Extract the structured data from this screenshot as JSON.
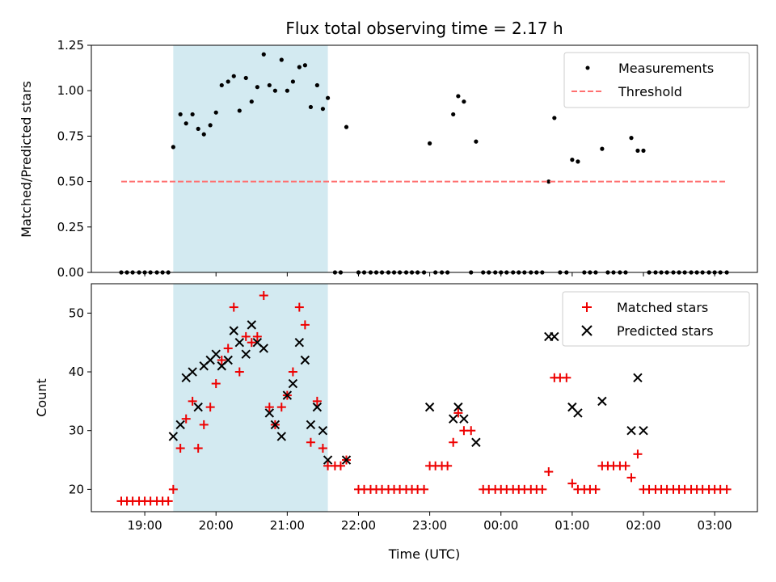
{
  "figure": {
    "title": "Flux total observing time = 2.17 h",
    "xlabel": "Time (UTC)",
    "xticks": [
      "19:00",
      "20:00",
      "21:00",
      "22:00",
      "23:00",
      "00:00",
      "01:00",
      "02:00",
      "03:00"
    ]
  },
  "chart_data": [
    {
      "type": "scatter",
      "title": "Flux total observing time = 2.17 h",
      "xlabel": "",
      "ylabel": "Matched/Predicted stars",
      "x_units": "hours since 19:00 UTC",
      "xlim": [
        -0.75,
        8.6
      ],
      "ylim": [
        0,
        1.25
      ],
      "yticks": [
        "0.00",
        "0.25",
        "0.50",
        "0.75",
        "1.00",
        "1.25"
      ],
      "shaded_region": {
        "x": [
          0.4,
          2.57
        ],
        "color": "#a8d6e3"
      },
      "legend": {
        "position": "upper right",
        "entries": [
          "Measurements",
          "Threshold"
        ]
      },
      "series": [
        {
          "name": "Measurements",
          "marker": "dot",
          "color": "#000000",
          "points": [
            [
              -0.33,
              0
            ],
            [
              -0.25,
              0
            ],
            [
              -0.17,
              0
            ],
            [
              -0.08,
              0
            ],
            [
              0,
              0
            ],
            [
              0.08,
              0
            ],
            [
              0.17,
              0
            ],
            [
              0.25,
              0
            ],
            [
              0.33,
              0
            ],
            [
              0.4,
              0.69
            ],
            [
              0.5,
              0.87
            ],
            [
              0.58,
              0.82
            ],
            [
              0.67,
              0.87
            ],
            [
              0.75,
              0.79
            ],
            [
              0.83,
              0.76
            ],
            [
              0.92,
              0.81
            ],
            [
              1.0,
              0.88
            ],
            [
              1.08,
              1.03
            ],
            [
              1.17,
              1.05
            ],
            [
              1.25,
              1.08
            ],
            [
              1.33,
              0.89
            ],
            [
              1.42,
              1.07
            ],
            [
              1.5,
              0.94
            ],
            [
              1.58,
              1.02
            ],
            [
              1.67,
              1.2
            ],
            [
              1.75,
              1.03
            ],
            [
              1.83,
              1.0
            ],
            [
              1.92,
              1.17
            ],
            [
              2.0,
              1.0
            ],
            [
              2.08,
              1.05
            ],
            [
              2.17,
              1.13
            ],
            [
              2.25,
              1.14
            ],
            [
              2.33,
              0.91
            ],
            [
              2.42,
              1.03
            ],
            [
              2.5,
              0.9
            ],
            [
              2.57,
              0.96
            ],
            [
              2.67,
              0
            ],
            [
              2.75,
              0
            ],
            [
              2.83,
              0.8
            ],
            [
              3.0,
              0
            ],
            [
              3.08,
              0
            ],
            [
              3.17,
              0
            ],
            [
              3.25,
              0
            ],
            [
              3.33,
              0
            ],
            [
              3.42,
              0
            ],
            [
              3.5,
              0
            ],
            [
              3.58,
              0
            ],
            [
              3.67,
              0
            ],
            [
              3.75,
              0
            ],
            [
              3.83,
              0
            ],
            [
              3.92,
              0
            ],
            [
              4.0,
              0.71
            ],
            [
              4.08,
              0
            ],
            [
              4.17,
              0
            ],
            [
              4.25,
              0
            ],
            [
              4.33,
              0.87
            ],
            [
              4.4,
              0.97
            ],
            [
              4.48,
              0.94
            ],
            [
              4.58,
              0
            ],
            [
              4.65,
              0.72
            ],
            [
              4.75,
              0
            ],
            [
              4.83,
              0
            ],
            [
              4.92,
              0
            ],
            [
              5.0,
              0
            ],
            [
              5.08,
              0
            ],
            [
              5.17,
              0
            ],
            [
              5.25,
              0
            ],
            [
              5.33,
              0
            ],
            [
              5.42,
              0
            ],
            [
              5.5,
              0
            ],
            [
              5.58,
              0
            ],
            [
              5.67,
              0.5
            ],
            [
              5.75,
              0.85
            ],
            [
              5.83,
              0
            ],
            [
              5.92,
              0
            ],
            [
              6.0,
              0.62
            ],
            [
              6.08,
              0.61
            ],
            [
              6.17,
              0
            ],
            [
              6.25,
              0
            ],
            [
              6.33,
              0
            ],
            [
              6.42,
              0.68
            ],
            [
              6.5,
              0
            ],
            [
              6.58,
              0
            ],
            [
              6.67,
              0
            ],
            [
              6.75,
              0
            ],
            [
              6.83,
              0.74
            ],
            [
              6.92,
              0.67
            ],
            [
              7.0,
              0.67
            ],
            [
              7.08,
              0
            ],
            [
              7.17,
              0
            ],
            [
              7.25,
              0
            ],
            [
              7.33,
              0
            ],
            [
              7.42,
              0
            ],
            [
              7.5,
              0
            ],
            [
              7.58,
              0
            ],
            [
              7.67,
              0
            ],
            [
              7.75,
              0
            ],
            [
              7.83,
              0
            ],
            [
              7.92,
              0
            ],
            [
              8.0,
              0
            ],
            [
              8.08,
              0
            ],
            [
              8.17,
              0
            ]
          ]
        },
        {
          "name": "Threshold",
          "type": "line",
          "style": "dashed",
          "color": "#ff7070",
          "points": [
            [
              -0.33,
              0.5
            ],
            [
              8.17,
              0.5
            ]
          ]
        }
      ]
    },
    {
      "type": "scatter",
      "xlabel": "Time (UTC)",
      "ylabel": "Count",
      "x_units": "hours since 19:00 UTC",
      "xlim": [
        -0.75,
        8.6
      ],
      "ylim": [
        16.2,
        55
      ],
      "yticks": [
        "20",
        "30",
        "40",
        "50"
      ],
      "shaded_region": {
        "x": [
          0.4,
          2.57
        ],
        "color": "#a8d6e3"
      },
      "legend": {
        "position": "upper right",
        "entries": [
          "Matched stars",
          "Predicted stars"
        ]
      },
      "series": [
        {
          "name": "Matched stars",
          "marker": "plus",
          "color": "#ee0000",
          "points": [
            [
              -0.33,
              18
            ],
            [
              -0.25,
              18
            ],
            [
              -0.17,
              18
            ],
            [
              -0.08,
              18
            ],
            [
              0,
              18
            ],
            [
              0.08,
              18
            ],
            [
              0.17,
              18
            ],
            [
              0.25,
              18
            ],
            [
              0.33,
              18
            ],
            [
              0.4,
              20
            ],
            [
              0.5,
              27
            ],
            [
              0.58,
              32
            ],
            [
              0.67,
              35
            ],
            [
              0.75,
              27
            ],
            [
              0.83,
              31
            ],
            [
              0.92,
              34
            ],
            [
              1.0,
              38
            ],
            [
              1.08,
              42
            ],
            [
              1.17,
              44
            ],
            [
              1.25,
              51
            ],
            [
              1.33,
              40
            ],
            [
              1.42,
              46
            ],
            [
              1.5,
              45
            ],
            [
              1.58,
              46
            ],
            [
              1.67,
              53
            ],
            [
              1.75,
              34
            ],
            [
              1.83,
              31
            ],
            [
              1.92,
              34
            ],
            [
              2.0,
              36
            ],
            [
              2.08,
              40
            ],
            [
              2.17,
              51
            ],
            [
              2.25,
              48
            ],
            [
              2.33,
              28
            ],
            [
              2.42,
              35
            ],
            [
              2.5,
              27
            ],
            [
              2.57,
              24
            ],
            [
              2.67,
              24
            ],
            [
              2.75,
              24
            ],
            [
              2.83,
              25
            ],
            [
              3.0,
              20
            ],
            [
              3.08,
              20
            ],
            [
              3.17,
              20
            ],
            [
              3.25,
              20
            ],
            [
              3.33,
              20
            ],
            [
              3.42,
              20
            ],
            [
              3.5,
              20
            ],
            [
              3.58,
              20
            ],
            [
              3.67,
              20
            ],
            [
              3.75,
              20
            ],
            [
              3.83,
              20
            ],
            [
              3.92,
              20
            ],
            [
              4.0,
              24
            ],
            [
              4.08,
              24
            ],
            [
              4.17,
              24
            ],
            [
              4.25,
              24
            ],
            [
              4.33,
              28
            ],
            [
              4.4,
              33
            ],
            [
              4.48,
              30
            ],
            [
              4.58,
              30
            ],
            [
              4.75,
              20
            ],
            [
              4.83,
              20
            ],
            [
              4.92,
              20
            ],
            [
              5.0,
              20
            ],
            [
              5.08,
              20
            ],
            [
              5.17,
              20
            ],
            [
              5.25,
              20
            ],
            [
              5.33,
              20
            ],
            [
              5.42,
              20
            ],
            [
              5.5,
              20
            ],
            [
              5.58,
              20
            ],
            [
              5.67,
              23
            ],
            [
              5.75,
              39
            ],
            [
              5.83,
              39
            ],
            [
              5.92,
              39
            ],
            [
              6.0,
              21
            ],
            [
              6.08,
              20
            ],
            [
              6.17,
              20
            ],
            [
              6.25,
              20
            ],
            [
              6.33,
              20
            ],
            [
              6.42,
              24
            ],
            [
              6.5,
              24
            ],
            [
              6.58,
              24
            ],
            [
              6.67,
              24
            ],
            [
              6.75,
              24
            ],
            [
              6.83,
              22
            ],
            [
              6.92,
              26
            ],
            [
              7.0,
              20
            ],
            [
              7.08,
              20
            ],
            [
              7.17,
              20
            ],
            [
              7.25,
              20
            ],
            [
              7.33,
              20
            ],
            [
              7.42,
              20
            ],
            [
              7.5,
              20
            ],
            [
              7.58,
              20
            ],
            [
              7.67,
              20
            ],
            [
              7.75,
              20
            ],
            [
              7.83,
              20
            ],
            [
              7.92,
              20
            ],
            [
              8.0,
              20
            ],
            [
              8.08,
              20
            ],
            [
              8.17,
              20
            ]
          ]
        },
        {
          "name": "Predicted stars",
          "marker": "x",
          "color": "#000000",
          "points": [
            [
              0.4,
              29
            ],
            [
              0.5,
              31
            ],
            [
              0.58,
              39
            ],
            [
              0.67,
              40
            ],
            [
              0.75,
              34
            ],
            [
              0.83,
              41
            ],
            [
              0.92,
              42
            ],
            [
              1.0,
              43
            ],
            [
              1.08,
              41
            ],
            [
              1.17,
              42
            ],
            [
              1.25,
              47
            ],
            [
              1.33,
              45
            ],
            [
              1.42,
              43
            ],
            [
              1.5,
              48
            ],
            [
              1.58,
              45
            ],
            [
              1.67,
              44
            ],
            [
              1.75,
              33
            ],
            [
              1.83,
              31
            ],
            [
              1.92,
              29
            ],
            [
              2.0,
              36
            ],
            [
              2.08,
              38
            ],
            [
              2.17,
              45
            ],
            [
              2.25,
              42
            ],
            [
              2.33,
              31
            ],
            [
              2.42,
              34
            ],
            [
              2.5,
              30
            ],
            [
              2.57,
              25
            ],
            [
              2.83,
              25
            ],
            [
              4.0,
              34
            ],
            [
              4.33,
              32
            ],
            [
              4.4,
              34
            ],
            [
              4.48,
              32
            ],
            [
              4.65,
              28
            ],
            [
              5.67,
              46
            ],
            [
              5.75,
              46
            ],
            [
              6.0,
              34
            ],
            [
              6.08,
              33
            ],
            [
              6.42,
              35
            ],
            [
              6.83,
              30
            ],
            [
              6.92,
              39
            ],
            [
              7.0,
              30
            ]
          ]
        }
      ]
    }
  ]
}
